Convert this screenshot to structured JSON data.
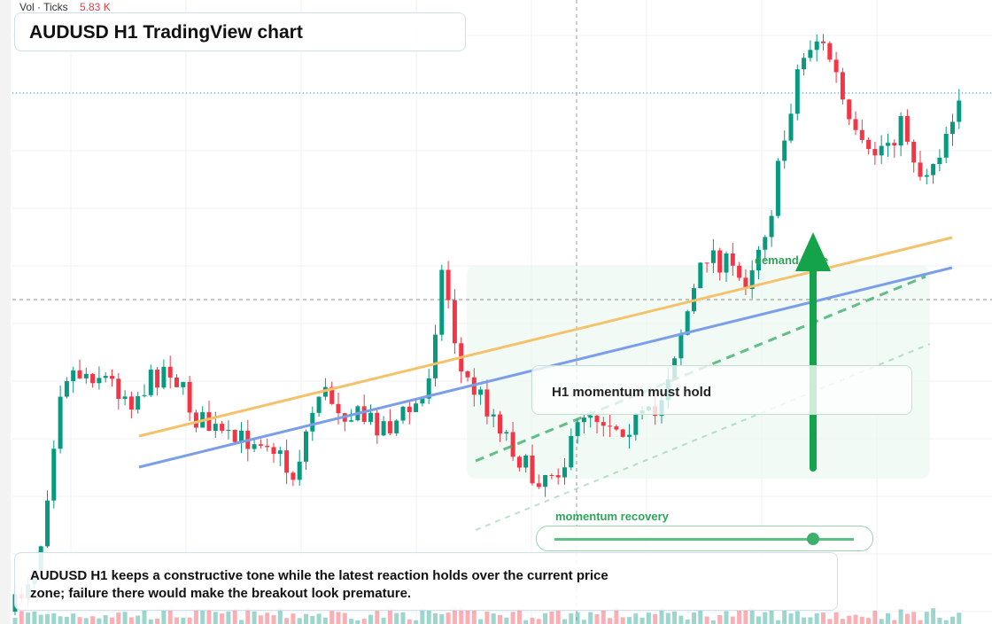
{
  "header": {
    "volume_label": "Vol · Ticks",
    "volume_value": "5.83 K",
    "title": "AUDUSD H1 TradingView chart"
  },
  "annotations": {
    "zone": "demand zone",
    "callout": "H1 momentum must hold",
    "slider_label": "momentum recovery"
  },
  "footer": {
    "text": "AUDUSD H1 keeps a constructive tone while the latest reaction holds over the current price zone; failure there would make the breakout look premature."
  }
}
